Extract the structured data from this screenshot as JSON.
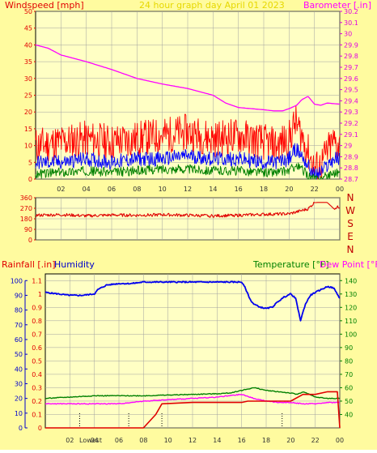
{
  "header": {
    "left_label": "Windspeed [mph]",
    "center_label": "24 hour graph day   April 01 2023",
    "right_label": "Barometer [.in]"
  },
  "panel2": {
    "direction_labels": [
      "N",
      "W",
      "S",
      "E",
      "N"
    ]
  },
  "panel3": {
    "rain_label": "Rainfall [.in]",
    "humidity_label": "Humidity",
    "temp_label": "Temperature [°F]",
    "dew_label": "Dew Point [°F]",
    "footer_label": "Lowest"
  },
  "colors": {
    "frame": "#fffb9f",
    "bg": "#ffffc4",
    "grid": "#a0a0a0",
    "wind_gust": "#ff0000",
    "wind_avg": "#0000ff",
    "wind_low": "#008000",
    "baro": "#ff00ff",
    "winddir": "#e00000",
    "humidity": "#0000ee",
    "temperature": "#008000",
    "dew": "#ff00ff",
    "rain": "#e00000"
  },
  "chart_data": [
    {
      "type": "line",
      "x_ticks": [
        "02",
        "04",
        "06",
        "08",
        "10",
        "12",
        "14",
        "16",
        "18",
        "20",
        "22",
        "00"
      ],
      "y_left_ticks": [
        "0",
        "5",
        "10",
        "15",
        "20",
        "25",
        "30",
        "35",
        "40",
        "45",
        "50"
      ],
      "y_left_range": [
        0,
        50
      ],
      "y_right_ticks": [
        "28.7",
        "28.8",
        "28.9",
        "29",
        "29.1",
        "29.2",
        "29.3",
        "29.4",
        "29.5",
        "29.6",
        "29.7",
        "29.8",
        "29.9",
        "30",
        "30.1",
        "30.2"
      ],
      "y_right_range": [
        28.7,
        30.2
      ],
      "barometer": {
        "x": [
          0,
          1,
          2,
          4,
          6,
          8,
          10,
          12,
          14,
          15,
          16,
          17,
          18,
          18.8,
          19.5,
          20,
          20.6,
          21,
          21.5,
          22,
          22.5,
          23,
          24
        ],
        "y": [
          29.9,
          29.87,
          29.81,
          29.75,
          29.68,
          29.6,
          29.55,
          29.51,
          29.45,
          29.38,
          29.34,
          29.33,
          29.32,
          29.31,
          29.31,
          29.33,
          29.36,
          29.41,
          29.44,
          29.37,
          29.36,
          29.38,
          29.37
        ]
      },
      "wind_gust": {
        "x": [
          0,
          2,
          4,
          6,
          8,
          10,
          12,
          14,
          16,
          18,
          19,
          20,
          20.5,
          21,
          21.5,
          22,
          22.5,
          23,
          23.5,
          24
        ],
        "y": [
          10,
          11,
          12,
          11,
          12,
          13,
          14,
          12,
          13,
          11,
          10,
          12,
          17,
          13,
          8,
          3,
          4,
          8,
          11,
          10
        ]
      },
      "wind_avg": {
        "x": [
          0,
          2,
          4,
          6,
          8,
          10,
          12,
          14,
          16,
          18,
          19,
          20,
          20.5,
          21,
          21.5,
          22,
          22.5,
          23,
          23.5,
          24
        ],
        "y": [
          5,
          5,
          6,
          5,
          6,
          6,
          7,
          6,
          6,
          5,
          5,
          6,
          9,
          7,
          4,
          1,
          2,
          4,
          6,
          6
        ]
      },
      "wind_low": {
        "x": [
          0,
          2,
          4,
          6,
          8,
          10,
          12,
          14,
          16,
          18,
          19,
          20,
          20.5,
          21,
          21.5,
          22,
          22.5,
          23,
          23.5,
          24
        ],
        "y": [
          1.5,
          2,
          2.5,
          2,
          2.5,
          3,
          3,
          2.5,
          2.5,
          2,
          2,
          2.5,
          4,
          3,
          1,
          0,
          0,
          1,
          2,
          2
        ]
      }
    },
    {
      "type": "line",
      "x_ticks": [
        "02",
        "04",
        "06",
        "08",
        "10",
        "12",
        "14",
        "16",
        "18",
        "20",
        "22",
        "00"
      ],
      "y_ticks": [
        "0",
        "90",
        "180",
        "270",
        "360"
      ],
      "y_range": [
        0,
        360
      ],
      "wind_direction": {
        "x": [
          0,
          2,
          4,
          6,
          8,
          10,
          12,
          14,
          16,
          18,
          20,
          21,
          21.5,
          22,
          22.3,
          23,
          23.5,
          24
        ],
        "y": [
          210,
          215,
          205,
          212,
          210,
          215,
          210,
          205,
          210,
          218,
          222,
          250,
          265,
          318,
          320,
          320,
          270,
          282
        ]
      }
    },
    {
      "type": "line",
      "x_ticks": [
        "02",
        "04",
        "06",
        "08",
        "10",
        "12",
        "14",
        "16",
        "18",
        "20",
        "22",
        "00"
      ],
      "y_left_ticks": [
        "0",
        "0.1",
        "0.2",
        "0.3",
        "0.4",
        "0.5",
        "0.6",
        "0.7",
        "0.8",
        "0.9",
        "1",
        "1.1"
      ],
      "y_left_range": [
        0,
        1.15
      ],
      "y_far_left_ticks": [
        "0",
        "10",
        "20",
        "30",
        "40",
        "50",
        "60",
        "70",
        "80",
        "90",
        "100"
      ],
      "y_far_left_range": [
        0,
        100
      ],
      "y_right_ticks": [
        "40",
        "50",
        "60",
        "70",
        "80",
        "90",
        "100",
        "110",
        "120",
        "130",
        "140"
      ],
      "y_right_range": [
        30,
        145
      ],
      "humidity": {
        "x": [
          0,
          1,
          2,
          3,
          4,
          4.3,
          5,
          6,
          7,
          8,
          10,
          12,
          14,
          15.5,
          16,
          16.3,
          16.7,
          17,
          17.5,
          18,
          18.5,
          19,
          19.5,
          20,
          20.4,
          20.8,
          21.2,
          21.6,
          22,
          22.5,
          23,
          23.5,
          24
        ],
        "y": [
          92,
          91,
          90,
          90,
          91,
          94,
          97,
          98,
          98,
          99,
          99,
          99,
          99,
          99,
          99,
          95,
          87,
          84,
          82,
          81,
          82,
          86,
          89,
          91,
          88,
          73,
          84,
          90,
          92,
          94,
          96,
          95,
          88
        ]
      },
      "temperature": {
        "x": [
          0,
          2,
          4,
          6,
          8,
          10,
          12,
          14,
          15,
          16,
          17,
          18,
          19,
          20,
          20.5,
          21,
          22,
          23,
          24
        ],
        "y": [
          52,
          53,
          54,
          54,
          54,
          54.5,
          55,
          55.5,
          56,
          58,
          60,
          58,
          57,
          56,
          55,
          57,
          53,
          52,
          52
        ]
      },
      "dew_point": {
        "x": [
          0,
          2,
          4,
          6,
          7,
          8,
          10,
          12,
          14,
          15,
          16,
          17,
          18,
          19,
          20,
          21,
          22,
          23,
          24
        ],
        "y": [
          48,
          48,
          48,
          48,
          49,
          50,
          51,
          52,
          53,
          54,
          55,
          52,
          50,
          49,
          49,
          48,
          48,
          49,
          49
        ]
      },
      "rainfall": {
        "x": [
          0,
          6,
          8,
          9,
          9.5,
          12,
          14,
          16,
          16.5,
          20,
          21,
          22,
          23,
          23.8,
          24
        ],
        "y": [
          0,
          0,
          0,
          0.1,
          0.18,
          0.19,
          0.19,
          0.19,
          0.2,
          0.2,
          0.25,
          0.25,
          0.27,
          0.27,
          0.0
        ]
      },
      "markers_x": [
        2.8,
        6.8,
        9.5,
        19.3
      ]
    }
  ]
}
